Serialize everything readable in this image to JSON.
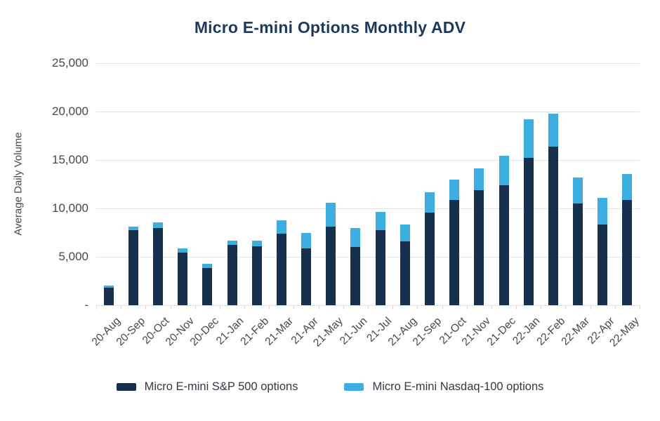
{
  "chart_data": {
    "type": "bar",
    "stacked": true,
    "title": "Micro E-mini Options Monthly ADV",
    "ylabel": "Average Daily Volume",
    "xlabel": "",
    "ylim": [
      0,
      25000
    ],
    "ytick_interval": 5000,
    "ytick_labels_bottom_up": [
      "-",
      "5,000",
      "10,000",
      "15,000",
      "20,000",
      "25,000"
    ],
    "grid": true,
    "legend_position": "bottom",
    "categories": [
      "20-Aug",
      "20-Sep",
      "20-Oct",
      "20-Nov",
      "20-Dec",
      "21-Jan",
      "21-Feb",
      "21-Mar",
      "21-Apr",
      "21-May",
      "21-Jun",
      "21-Jul",
      "21-Aug",
      "21-Sep",
      "21-Oct",
      "21-Nov",
      "21-Dec",
      "22-Jan",
      "22-Feb",
      "22-Mar",
      "22-Apr",
      "22-May"
    ],
    "series": [
      {
        "name": "Micro E-mini S&P 500 options",
        "color": "#17304e",
        "values": [
          1800,
          7750,
          8000,
          5450,
          3850,
          6250,
          6100,
          7400,
          5900,
          8150,
          6050,
          7750,
          6600,
          9600,
          10900,
          11900,
          12400,
          15250,
          16350,
          10500,
          8300,
          10900
        ]
      },
      {
        "name": "Micro E-mini Nasdaq-100 options",
        "color": "#3cafe0",
        "values": [
          200,
          400,
          550,
          450,
          400,
          450,
          550,
          1350,
          1550,
          2400,
          1900,
          1900,
          1700,
          2050,
          2100,
          2250,
          3050,
          3950,
          3400,
          2700,
          2800,
          2650
        ]
      }
    ],
    "totals": [
      2000,
      8150,
      8550,
      5900,
      4250,
      6700,
      6650,
      8750,
      7450,
      10550,
      7950,
      9650,
      8300,
      11650,
      13000,
      14150,
      15450,
      19200,
      19750,
      13200,
      11100,
      13550
    ]
  },
  "colors": {
    "title": "#1b3a5c",
    "axis_text": "#42494f",
    "gridline": "#e3e3e3",
    "tick": "#d9d9d9",
    "legend_text": "#323a43"
  }
}
